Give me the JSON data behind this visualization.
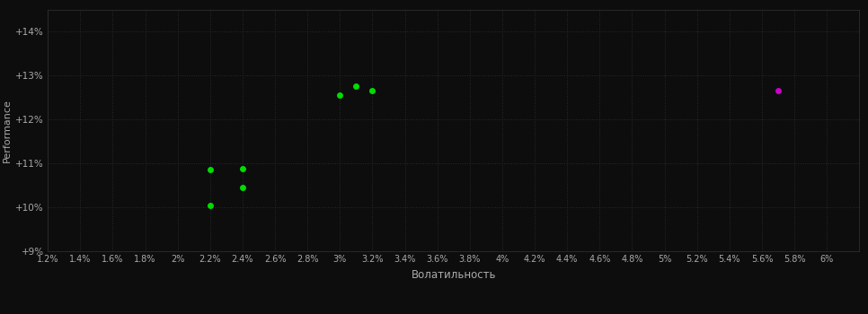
{
  "background_color": "#0d0d0d",
  "plot_bg_color": "#0d0d0d",
  "grid_color": "#2a2a2a",
  "text_color": "#aaaaaa",
  "xlabel": "Волатильность",
  "ylabel": "Performance",
  "xlim": [
    0.012,
    0.062
  ],
  "ylim": [
    0.09,
    0.145
  ],
  "xtick_values": [
    0.012,
    0.014,
    0.016,
    0.018,
    0.02,
    0.022,
    0.024,
    0.026,
    0.028,
    0.03,
    0.032,
    0.034,
    0.036,
    0.038,
    0.04,
    0.042,
    0.044,
    0.046,
    0.048,
    0.05,
    0.052,
    0.054,
    0.056,
    0.058,
    0.06
  ],
  "ytick_values": [
    0.09,
    0.1,
    0.11,
    0.12,
    0.13,
    0.14
  ],
  "green_points": [
    [
      0.022,
      0.1085
    ],
    [
      0.024,
      0.1088
    ],
    [
      0.024,
      0.1045
    ],
    [
      0.022,
      0.1005
    ],
    [
      0.03,
      0.1255
    ],
    [
      0.031,
      0.1275
    ],
    [
      0.032,
      0.1265
    ]
  ],
  "magenta_points": [
    [
      0.057,
      0.1265
    ]
  ],
  "green_color": "#00dd00",
  "magenta_color": "#cc00cc",
  "marker_size": 5
}
